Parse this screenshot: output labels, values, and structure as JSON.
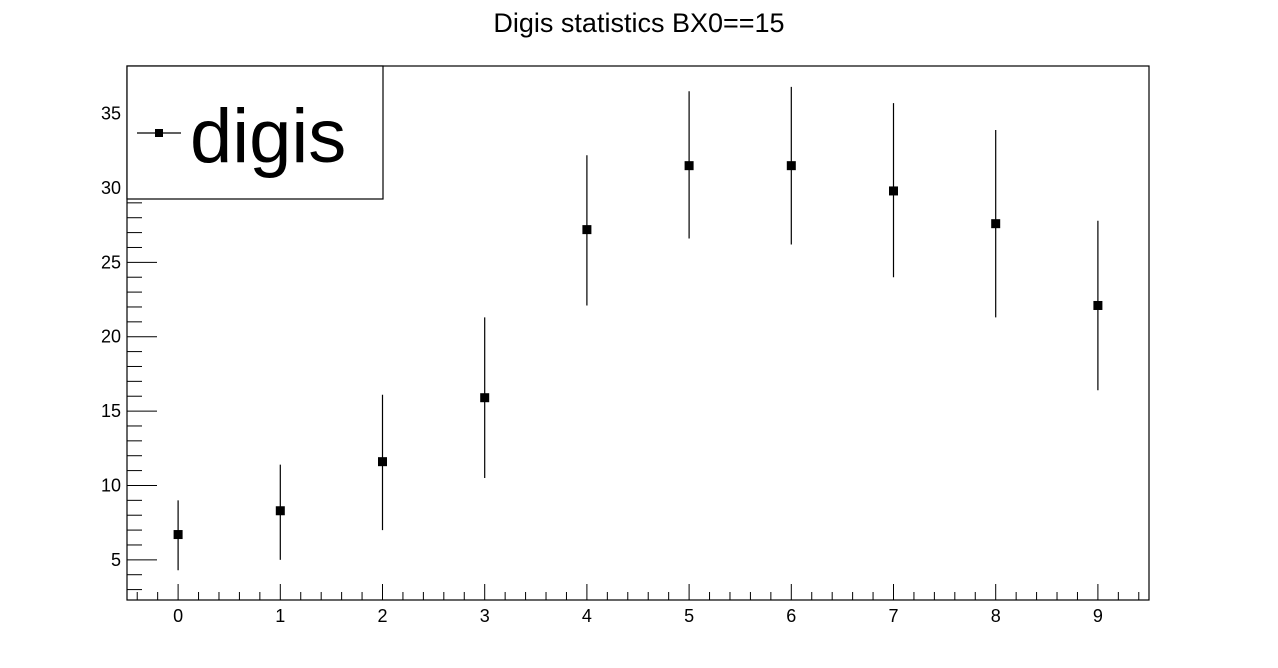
{
  "chart_data": {
    "type": "scatter",
    "title": "Digis statistics BX0==15",
    "xlabel": "",
    "ylabel": "",
    "xlim": [
      -0.5,
      9.5
    ],
    "ylim": [
      2.3,
      38.2
    ],
    "x_ticks": [
      0,
      1,
      2,
      3,
      4,
      5,
      6,
      7,
      8,
      9
    ],
    "y_ticks": [
      5,
      10,
      15,
      20,
      25,
      30,
      35
    ],
    "grid": false,
    "legend": {
      "position": "top-left",
      "entries": [
        "digis"
      ]
    },
    "series": [
      {
        "name": "digis",
        "marker": "square",
        "color": "#000000",
        "x": [
          0,
          1,
          2,
          3,
          4,
          5,
          6,
          7,
          8,
          9
        ],
        "y": [
          6.7,
          8.3,
          11.6,
          15.9,
          27.2,
          31.5,
          31.5,
          29.8,
          27.6,
          22.1
        ],
        "y_err_low": [
          2.4,
          3.3,
          4.6,
          5.4,
          5.1,
          4.9,
          5.3,
          5.8,
          6.3,
          5.7
        ],
        "y_err_high": [
          2.3,
          3.1,
          4.5,
          5.4,
          5.0,
          5.0,
          5.3,
          5.9,
          6.3,
          5.7
        ]
      }
    ]
  }
}
